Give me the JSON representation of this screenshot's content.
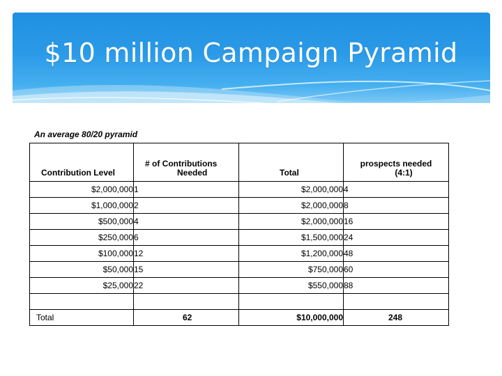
{
  "slide": {
    "title": "$10 million Campaign Pyramid",
    "subtitle": "An average 80/20 pyramid",
    "banner_color": "#2a9ae8"
  },
  "table": {
    "headers": {
      "level": "Contribution Level",
      "contributions_line1": "# of Contributions",
      "contributions_line2": "Needed",
      "total": "Total",
      "prospects_line1": "prospects needed",
      "prospects_line2": "(4:1)"
    },
    "rows": [
      {
        "level": "$2,000,000",
        "count": "1",
        "total": "$2,000,000",
        "prospects": "4"
      },
      {
        "level": "$1,000,000",
        "count": "2",
        "total": "$2,000,000",
        "prospects": "8"
      },
      {
        "level": "$500,000",
        "count": "4",
        "total": "$2,000,000",
        "prospects": "16"
      },
      {
        "level": "$250,000",
        "count": "6",
        "total": "$1,500,000",
        "prospects": "24"
      },
      {
        "level": "$100,000",
        "count": "12",
        "total": "$1,200,000",
        "prospects": "48"
      },
      {
        "level": "$50,000",
        "count": "15",
        "total": "$750,000",
        "prospects": "60"
      },
      {
        "level": "$25,000",
        "count": "22",
        "total": "$550,000",
        "prospects": "88"
      }
    ],
    "total_row": {
      "label": "Total",
      "count": "62",
      "total": "$10,000,000",
      "prospects": "248"
    }
  }
}
